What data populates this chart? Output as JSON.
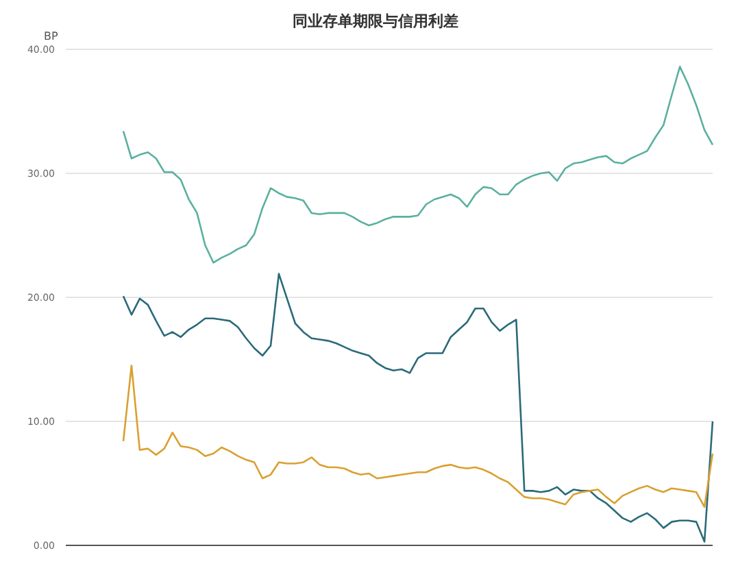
{
  "chart_data": {
    "type": "line",
    "title": "同业存单期限与信用利差",
    "ylabel": "BP",
    "categories": [
      null,
      null,
      null,
      null,
      null,
      null,
      null,
      null,
      null,
      null,
      null,
      null,
      null,
      null,
      null,
      null,
      null,
      null,
      null,
      null,
      null,
      null,
      null,
      null,
      null,
      null,
      null,
      null,
      null,
      null,
      null,
      null,
      null,
      null,
      null,
      null,
      null,
      null,
      null,
      null,
      null,
      null,
      null,
      null,
      null,
      null,
      null,
      null,
      null,
      null,
      null,
      null,
      null,
      null,
      null,
      null,
      null,
      null,
      null,
      null,
      null,
      null,
      null,
      null,
      null,
      null,
      null,
      null,
      null,
      null,
      null,
      null,
      null
    ],
    "series": [
      {
        "color": "#5ab0a0",
        "values": [
          33.4,
          31.2,
          31.5,
          31.7,
          31.2,
          30.1,
          30.1,
          29.5,
          27.9,
          26.8,
          24.2,
          22.8,
          23.2,
          23.5,
          23.9,
          24.2,
          25.1,
          27.2,
          28.8,
          28.4,
          28.1,
          28.0,
          27.8,
          26.8,
          26.7,
          26.8,
          26.8,
          26.8,
          26.5,
          26.1,
          25.8,
          26.0,
          26.3,
          26.5,
          26.5,
          26.5,
          26.6,
          27.5,
          27.9,
          28.1,
          28.3,
          28.0,
          27.3,
          28.3,
          28.9,
          28.8,
          28.3,
          28.3,
          29.1,
          29.5,
          29.8,
          30.0,
          30.1,
          29.4,
          30.4,
          30.8,
          30.9,
          31.1,
          31.3,
          31.4,
          30.9,
          30.8,
          31.2,
          31.5,
          31.8,
          32.9,
          33.9,
          36.3,
          38.6,
          37.2,
          35.5,
          33.5,
          32.3
        ]
      },
      {
        "color": "#2a6a7a",
        "values": [
          20.1,
          18.6,
          19.9,
          19.4,
          18.1,
          16.9,
          17.2,
          16.8,
          17.4,
          17.8,
          18.3,
          18.3,
          18.2,
          18.1,
          17.6,
          16.7,
          15.9,
          15.3,
          16.1,
          21.9,
          19.9,
          17.9,
          17.2,
          16.7,
          16.6,
          16.5,
          16.3,
          16.0,
          15.7,
          15.5,
          15.3,
          14.7,
          14.3,
          14.1,
          14.2,
          13.9,
          15.1,
          15.5,
          15.5,
          15.5,
          16.8,
          17.4,
          18.0,
          19.1,
          19.1,
          18.0,
          17.3,
          17.8,
          18.2,
          4.4,
          4.4,
          4.3,
          4.4,
          4.7,
          4.1,
          4.5,
          4.4,
          4.4,
          3.8,
          3.4,
          2.8,
          2.2,
          1.9,
          2.3,
          2.6,
          2.1,
          1.4,
          1.9,
          2.0,
          2.0,
          1.9,
          0.3,
          10.0
        ]
      },
      {
        "color": "#d9a030",
        "values": [
          8.4,
          14.5,
          7.7,
          7.8,
          7.3,
          7.8,
          9.1,
          8.0,
          7.9,
          7.7,
          7.2,
          7.4,
          7.9,
          7.6,
          7.2,
          6.9,
          6.7,
          5.4,
          5.7,
          6.7,
          6.6,
          6.6,
          6.7,
          7.1,
          6.5,
          6.3,
          6.3,
          6.2,
          5.9,
          5.7,
          5.8,
          5.4,
          5.5,
          5.6,
          5.7,
          5.8,
          5.9,
          5.9,
          6.2,
          6.4,
          6.5,
          6.3,
          6.2,
          6.3,
          6.1,
          5.8,
          5.4,
          5.1,
          4.5,
          3.9,
          3.8,
          3.8,
          3.7,
          3.5,
          3.3,
          4.1,
          4.3,
          4.4,
          4.5,
          3.9,
          3.4,
          4.0,
          4.3,
          4.6,
          4.8,
          4.5,
          4.3,
          4.6,
          4.5,
          4.4,
          4.3,
          3.1,
          7.4
        ]
      }
    ],
    "ylim": [
      0,
      40
    ],
    "yticks": [
      {
        "value": 0,
        "label": "0.00"
      },
      {
        "value": 10,
        "label": "10.00"
      },
      {
        "value": 20,
        "label": "20.00"
      },
      {
        "value": 30,
        "label": "30.00"
      },
      {
        "value": 40,
        "label": "40.00"
      }
    ],
    "grid": "y",
    "tick_labels": "y"
  }
}
